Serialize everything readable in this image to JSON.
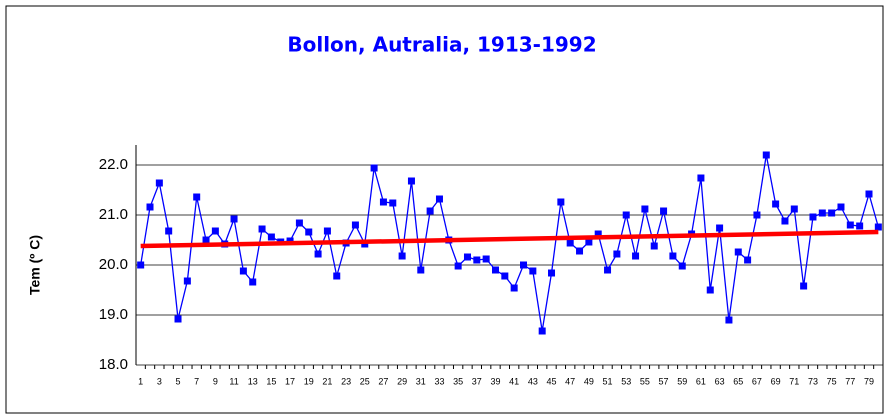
{
  "chart_data": {
    "type": "line",
    "title": "Bollon, Autralia, 1913-1992",
    "y_label": "Tem (º C)",
    "categories": [
      1,
      null,
      3,
      null,
      5,
      null,
      7,
      null,
      9,
      null,
      11,
      null,
      13,
      null,
      15,
      null,
      17,
      null,
      19,
      null,
      21,
      null,
      23,
      null,
      25,
      null,
      27,
      null,
      29,
      null,
      31,
      null,
      33,
      null,
      35,
      null,
      37,
      null,
      39,
      null,
      41,
      null,
      43,
      null,
      45,
      null,
      47,
      null,
      49,
      null,
      51,
      null,
      53,
      null,
      55,
      null,
      57,
      null,
      59,
      null,
      61,
      null,
      63,
      null,
      65,
      null,
      67,
      null,
      69,
      null,
      71,
      null,
      73,
      null,
      75,
      null,
      77,
      null,
      79,
      null
    ],
    "series": [
      {
        "color": "#0000ff",
        "values": [
          20.0,
          21.16,
          21.64,
          20.68,
          18.92,
          19.68,
          21.36,
          20.5,
          20.68,
          20.42,
          20.92,
          19.88,
          19.66,
          20.72,
          20.56,
          20.46,
          20.48,
          20.84,
          20.66,
          20.22,
          20.68,
          19.78,
          20.44,
          20.8,
          20.42,
          21.94,
          21.26,
          21.24,
          20.18,
          21.68,
          19.9,
          21.08,
          21.32,
          20.5,
          19.98,
          20.16,
          20.1,
          20.12,
          19.9,
          19.78,
          19.54,
          20.0,
          19.88,
          18.68,
          19.84,
          21.26,
          20.44,
          20.28,
          20.46,
          20.62,
          19.9,
          20.22,
          21.0,
          20.18,
          21.12,
          20.38,
          21.08,
          20.18,
          19.98,
          20.62,
          21.74,
          19.5,
          20.74,
          18.9,
          20.26,
          20.1,
          21.0,
          22.2,
          21.22,
          20.88,
          21.12,
          19.58,
          20.96,
          21.04,
          21.04,
          21.16,
          20.8,
          20.78,
          21.42,
          20.76
        ]
      }
    ],
    "trend": {
      "color": "#ff0000",
      "values": [
        20.38,
        20.66
      ]
    },
    "ylim": [
      18,
      22.4
    ],
    "yticks": [
      {
        "value": 18,
        "label": "18.0"
      },
      {
        "value": 19,
        "label": "19.0"
      },
      {
        "value": 20,
        "label": "20.0"
      },
      {
        "value": 21,
        "label": "21.0"
      },
      {
        "value": 22,
        "label": "22.0"
      }
    ],
    "grid": true
  }
}
